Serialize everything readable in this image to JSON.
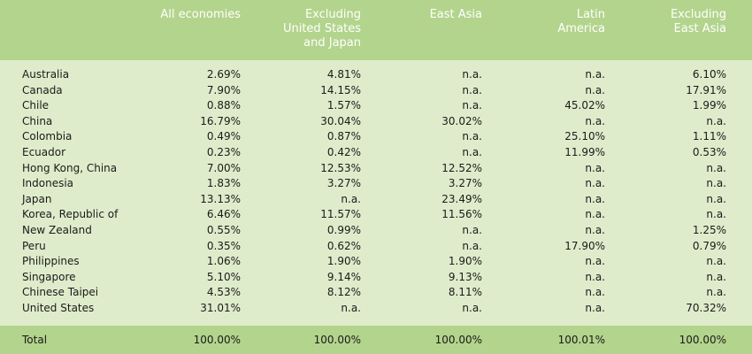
{
  "headers": [
    "",
    "All economies",
    "Excluding\nUnited States\nand Japan",
    "East Asia",
    "Latin\nAmerica",
    "Excluding\nEast Asia"
  ],
  "rows": [
    [
      "Australia",
      "2.69%",
      "4.81%",
      "n.a.",
      "n.a.",
      "6.10%"
    ],
    [
      "Canada",
      "7.90%",
      "14.15%",
      "n.a.",
      "n.a.",
      "17.91%"
    ],
    [
      "Chile",
      "0.88%",
      "1.57%",
      "n.a.",
      "45.02%",
      "1.99%"
    ],
    [
      "China",
      "16.79%",
      "30.04%",
      "30.02%",
      "n.a.",
      "n.a."
    ],
    [
      "Colombia",
      "0.49%",
      "0.87%",
      "n.a.",
      "25.10%",
      "1.11%"
    ],
    [
      "Ecuador",
      "0.23%",
      "0.42%",
      "n.a.",
      "11.99%",
      "0.53%"
    ],
    [
      "Hong Kong, China",
      "7.00%",
      "12.53%",
      "12.52%",
      "n.a.",
      "n.a."
    ],
    [
      "Indonesia",
      "1.83%",
      "3.27%",
      "3.27%",
      "n.a.",
      "n.a."
    ],
    [
      "Japan",
      "13.13%",
      "n.a.",
      "23.49%",
      "n.a.",
      "n.a."
    ],
    [
      "Korea, Republic of",
      "6.46%",
      "11.57%",
      "11.56%",
      "n.a.",
      "n.a."
    ],
    [
      "New Zealand",
      "0.55%",
      "0.99%",
      "n.a.",
      "n.a.",
      "1.25%"
    ],
    [
      "Peru",
      "0.35%",
      "0.62%",
      "n.a.",
      "17.90%",
      "0.79%"
    ],
    [
      "Philippines",
      "1.06%",
      "1.90%",
      "1.90%",
      "n.a.",
      "n.a."
    ],
    [
      "Singapore",
      "5.10%",
      "9.14%",
      "9.13%",
      "n.a.",
      "n.a."
    ],
    [
      "Chinese Taipei",
      "4.53%",
      "8.12%",
      "8.11%",
      "n.a.",
      "n.a."
    ],
    [
      "United States",
      "31.01%",
      "n.a.",
      "n.a.",
      "n.a.",
      "70.32%"
    ]
  ],
  "total": [
    "Total",
    "100.00%",
    "100.00%",
    "100.00%",
    "100.01%",
    "100.00%"
  ],
  "colors": {
    "header_bg": "#b3d48c",
    "body_bg": "#dfeccb",
    "header_text": "#ffffff"
  }
}
